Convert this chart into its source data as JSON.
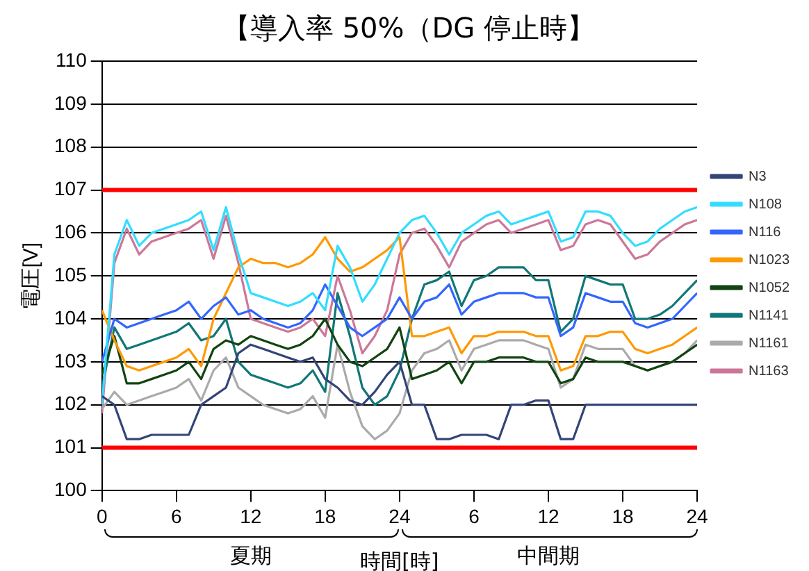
{
  "chart_data": {
    "type": "line",
    "title": "【導入率 50%（DG 停止時】",
    "xlabel": "時間[時]",
    "ylabel": "電圧[V]",
    "categories": [
      "0",
      null,
      null,
      null,
      null,
      null,
      "6",
      null,
      null,
      null,
      null,
      null,
      "12",
      null,
      null,
      null,
      null,
      null,
      "18",
      null,
      null,
      null,
      null,
      null,
      "24",
      null,
      null,
      null,
      null,
      null,
      "6",
      null,
      null,
      null,
      null,
      null,
      "12",
      null,
      null,
      null,
      null,
      null,
      "18",
      null,
      null,
      null,
      null,
      null,
      "24"
    ],
    "ylim": [
      100,
      110
    ],
    "yticks": [
      100,
      101,
      102,
      103,
      104,
      105,
      106,
      107,
      108,
      109,
      110
    ],
    "grid": "y",
    "legend": "right",
    "marker": "none",
    "line_style": "solid",
    "annotations": [
      "夏期",
      "中間期"
    ],
    "series": [
      {
        "name": "N3",
        "color": "#334477",
        "values": [
          102.2,
          102.0,
          101.2,
          101.2,
          101.3,
          101.3,
          101.3,
          101.3,
          102.0,
          102.2,
          102.4,
          103.2,
          103.4,
          103.3,
          103.2,
          103.1,
          103.0,
          103.1,
          102.6,
          102.4,
          102.1,
          102.0,
          102.3,
          102.7,
          103.0,
          102.0,
          102.0,
          101.2,
          101.2,
          101.3,
          101.3,
          101.3,
          101.2,
          102.0,
          102.0,
          102.1,
          102.1,
          101.2,
          101.2,
          102.0,
          102.0,
          102.0,
          102.0,
          102.0,
          102.0,
          102.0,
          102.0,
          102.0,
          102.0
        ]
      },
      {
        "name": "N108",
        "color": "#33ddff",
        "values": [
          102.0,
          105.5,
          106.3,
          105.7,
          106.0,
          106.1,
          106.2,
          106.3,
          106.5,
          105.6,
          106.6,
          105.5,
          104.6,
          104.5,
          104.4,
          104.3,
          104.4,
          104.6,
          104.2,
          105.7,
          105.2,
          104.4,
          104.8,
          105.4,
          106.0,
          106.3,
          106.4,
          106.0,
          105.5,
          106.0,
          106.2,
          106.4,
          106.5,
          106.2,
          106.3,
          106.4,
          106.5,
          105.8,
          105.9,
          106.5,
          106.5,
          106.4,
          106.0,
          105.7,
          105.8,
          106.1,
          106.3,
          106.5,
          106.6
        ]
      },
      {
        "name": "N116",
        "color": "#3366ff",
        "values": [
          103.0,
          104.0,
          103.8,
          103.9,
          104.0,
          104.1,
          104.2,
          104.4,
          104.0,
          104.3,
          104.5,
          104.1,
          104.2,
          104.0,
          103.9,
          103.8,
          103.9,
          104.2,
          104.8,
          104.3,
          103.8,
          103.6,
          103.8,
          104.0,
          104.5,
          104.0,
          104.4,
          104.5,
          104.8,
          104.1,
          104.4,
          104.5,
          104.6,
          104.6,
          104.6,
          104.5,
          104.5,
          103.6,
          103.8,
          104.6,
          104.5,
          104.4,
          104.4,
          103.9,
          103.8,
          103.9,
          104.0,
          104.3,
          104.6
        ]
      },
      {
        "name": "N1023",
        "color": "#ff9900",
        "values": [
          104.2,
          103.5,
          102.9,
          102.8,
          102.9,
          103.0,
          103.1,
          103.3,
          102.9,
          104.0,
          104.6,
          105.2,
          105.4,
          105.3,
          105.3,
          105.2,
          105.3,
          105.5,
          105.9,
          105.4,
          105.1,
          105.2,
          105.4,
          105.6,
          105.9,
          103.6,
          103.6,
          103.7,
          103.8,
          103.2,
          103.6,
          103.6,
          103.7,
          103.7,
          103.7,
          103.6,
          103.6,
          102.8,
          102.9,
          103.6,
          103.6,
          103.7,
          103.7,
          103.3,
          103.2,
          103.3,
          103.4,
          103.6,
          103.8
        ]
      },
      {
        "name": "N1052",
        "color": "#114411",
        "values": [
          102.7,
          103.6,
          102.5,
          102.5,
          102.6,
          102.7,
          102.8,
          103.0,
          102.6,
          103.3,
          103.5,
          103.4,
          103.6,
          103.5,
          103.4,
          103.3,
          103.4,
          103.6,
          104.0,
          103.4,
          103.0,
          102.9,
          103.1,
          103.3,
          103.8,
          102.6,
          102.7,
          102.8,
          103.0,
          102.5,
          103.0,
          103.0,
          103.1,
          103.1,
          103.1,
          103.0,
          103.0,
          102.5,
          102.6,
          103.1,
          103.0,
          103.0,
          103.0,
          102.9,
          102.8,
          102.9,
          103.0,
          103.2,
          103.4
        ]
      },
      {
        "name": "N1141",
        "color": "#117777",
        "values": [
          102.4,
          103.8,
          103.3,
          103.4,
          103.5,
          103.6,
          103.7,
          103.9,
          103.5,
          103.6,
          104.0,
          103.0,
          102.7,
          102.6,
          102.5,
          102.4,
          102.5,
          102.8,
          102.3,
          104.6,
          103.6,
          102.4,
          102.0,
          102.2,
          102.8,
          104.0,
          104.8,
          104.9,
          105.1,
          104.3,
          104.9,
          105.0,
          105.2,
          105.2,
          105.2,
          104.9,
          104.9,
          103.7,
          104.0,
          105.0,
          104.9,
          104.8,
          104.8,
          104.0,
          104.0,
          104.1,
          104.3,
          104.6,
          104.9
        ]
      },
      {
        "name": "N1161",
        "color": "#aaaaaa",
        "values": [
          101.9,
          102.3,
          102.0,
          102.1,
          102.2,
          102.3,
          102.4,
          102.6,
          102.1,
          102.8,
          103.1,
          102.4,
          102.2,
          102.0,
          101.9,
          101.8,
          101.9,
          102.2,
          101.7,
          103.4,
          102.3,
          101.5,
          101.2,
          101.4,
          101.8,
          102.8,
          103.2,
          103.3,
          103.5,
          102.8,
          103.3,
          103.4,
          103.5,
          103.5,
          103.5,
          103.4,
          103.3,
          102.4,
          102.6,
          103.4,
          103.3,
          103.3,
          103.3,
          102.9,
          102.8,
          102.9,
          103.0,
          103.2,
          103.5
        ]
      },
      {
        "color": "#ff0000",
        "values": [
          107,
          107,
          107,
          107,
          107,
          107,
          107,
          107,
          107,
          107,
          107,
          107,
          107,
          107,
          107,
          107,
          107,
          107,
          107,
          107,
          107,
          107,
          107,
          107,
          107,
          107,
          107,
          107,
          107,
          107,
          107,
          107,
          107,
          107,
          107,
          107,
          107,
          107,
          107,
          107,
          107,
          107,
          107,
          107,
          107,
          107,
          107,
          107,
          107
        ]
      },
      {
        "color": "#ff0000",
        "values": [
          101,
          101,
          101,
          101,
          101,
          101,
          101,
          101,
          101,
          101,
          101,
          101,
          101,
          101,
          101,
          101,
          101,
          101,
          101,
          101,
          101,
          101,
          101,
          101,
          101,
          101,
          101,
          101,
          101,
          101,
          101,
          101,
          101,
          101,
          101,
          101,
          101,
          101,
          101,
          101,
          101,
          101,
          101,
          101,
          101,
          101,
          101,
          101,
          101
        ]
      },
      {
        "name": "N1163",
        "color": "#cc7799",
        "values": [
          101.8,
          105.3,
          106.1,
          105.5,
          105.8,
          105.9,
          106.0,
          106.1,
          106.3,
          105.4,
          106.4,
          105.3,
          104.0,
          103.9,
          103.8,
          103.7,
          103.8,
          104.0,
          103.6,
          105.0,
          104.2,
          103.2,
          103.6,
          104.2,
          105.5,
          106.0,
          106.1,
          105.7,
          105.2,
          105.8,
          106.0,
          106.2,
          106.3,
          106.0,
          106.1,
          106.2,
          106.3,
          105.6,
          105.7,
          106.2,
          106.3,
          106.2,
          105.8,
          105.4,
          105.5,
          105.8,
          106.0,
          106.2,
          106.3
        ]
      }
    ]
  }
}
